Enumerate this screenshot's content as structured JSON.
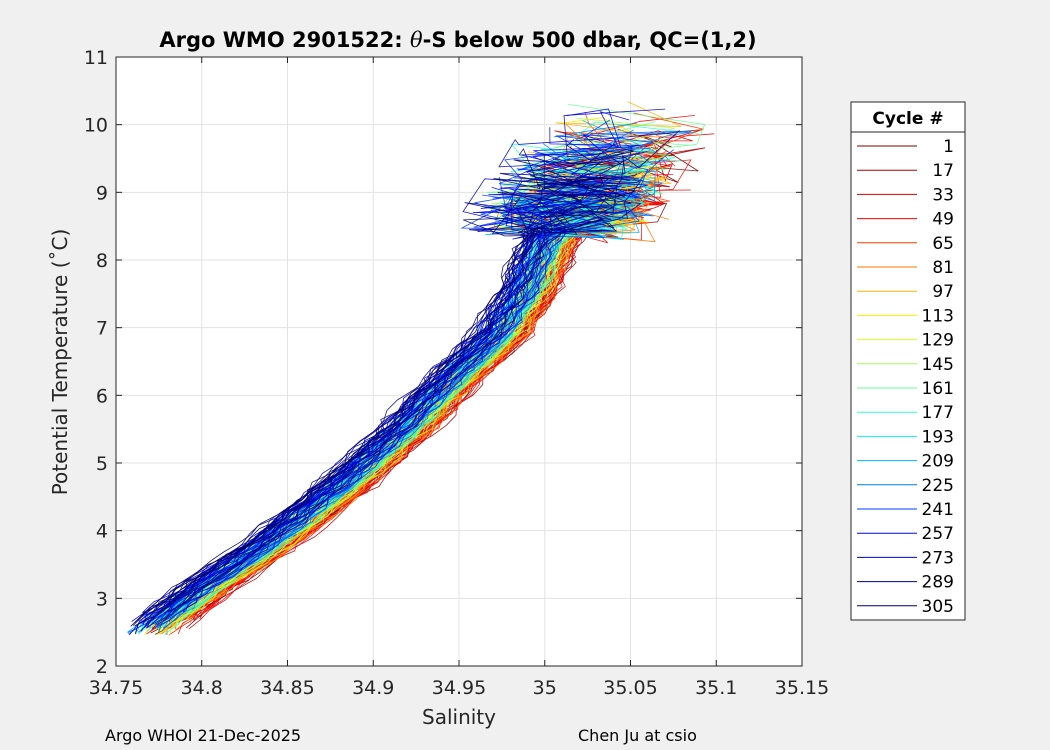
{
  "chart_data": {
    "type": "line",
    "title_prefix": "Argo WMO 2901522: ",
    "title_theta": "θ",
    "title_suffix": "-S below 500 dbar,  QC=(1,2)",
    "xlabel": "Salinity",
    "ylabel": "Potential Temperature (˚C)",
    "xlim": [
      34.75,
      35.15
    ],
    "ylim": [
      2,
      11
    ],
    "xticks": [
      34.75,
      34.8,
      34.85,
      34.9,
      34.95,
      35,
      35.05,
      35.1,
      35.15
    ],
    "xtick_labels": [
      "34.75",
      "34.8",
      "34.85",
      "34.9",
      "34.95",
      "35",
      "35.05",
      "35.1",
      "35.15"
    ],
    "yticks": [
      2,
      3,
      4,
      5,
      6,
      7,
      8,
      9,
      10,
      11
    ],
    "ytick_labels": [
      "2",
      "3",
      "4",
      "5",
      "6",
      "7",
      "8",
      "9",
      "10",
      "11"
    ],
    "grid": true,
    "legend": {
      "title": "Cycle #",
      "placement": "right",
      "entries": [
        {
          "label": "1",
          "color": "#7f0000"
        },
        {
          "label": "17",
          "color": "#a80000"
        },
        {
          "label": "33",
          "color": "#d40000"
        },
        {
          "label": "49",
          "color": "#ff0000"
        },
        {
          "label": "65",
          "color": "#ff3a00"
        },
        {
          "label": "81",
          "color": "#ff7400"
        },
        {
          "label": "97",
          "color": "#ffb000"
        },
        {
          "label": "113",
          "color": "#ffea00"
        },
        {
          "label": "129",
          "color": "#dcff1a"
        },
        {
          "label": "145",
          "color": "#a2ff55"
        },
        {
          "label": "161",
          "color": "#66ff90"
        },
        {
          "label": "177",
          "color": "#2bffcc"
        },
        {
          "label": "193",
          "color": "#00f0ff"
        },
        {
          "label": "209",
          "color": "#00b4ff"
        },
        {
          "label": "225",
          "color": "#007aff"
        },
        {
          "label": "241",
          "color": "#003eff"
        },
        {
          "label": "257",
          "color": "#0004ff"
        },
        {
          "label": "273",
          "color": "#0000c8"
        },
        {
          "label": "289",
          "color": "#00008c"
        },
        {
          "label": "305",
          "color": "#00006a"
        }
      ]
    },
    "core_path": {
      "salinity": [
        34.77,
        34.8,
        34.84,
        34.88,
        34.92,
        34.95,
        34.975,
        34.99,
        35.0,
        35.015,
        35.035,
        35.05
      ],
      "theta": [
        2.5,
        3.1,
        3.8,
        4.6,
        5.5,
        6.3,
        6.9,
        7.5,
        8.1,
        8.8,
        9.5,
        10.1
      ]
    },
    "series_note": "Each cycle is a θ-S profile colored by cycle number (jet colormap)"
  },
  "footer": {
    "left": "Argo WHOI 21-Dec-2025",
    "right": "Chen Ju at csio"
  }
}
